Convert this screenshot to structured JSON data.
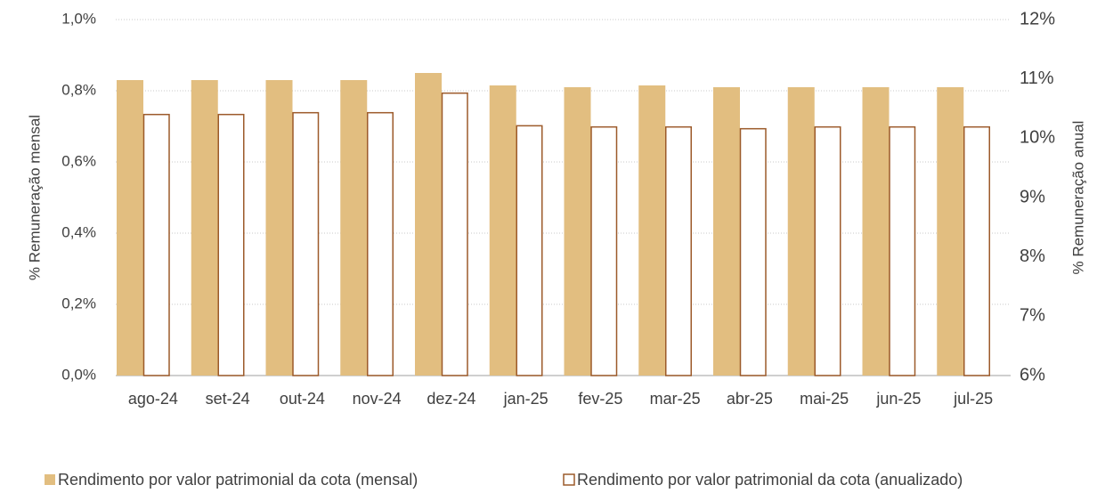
{
  "chart_data": {
    "type": "bar",
    "categories": [
      "ago-24",
      "set-24",
      "out-24",
      "nov-24",
      "dez-24",
      "jan-25",
      "fev-25",
      "mar-25",
      "abr-25",
      "mai-25",
      "jun-25",
      "jul-25"
    ],
    "series": [
      {
        "name": "Rendimento por valor patrimonial da cota (mensal)",
        "color": "#e2be80",
        "fill": "#e2be80",
        "values": [
          0.83,
          0.83,
          0.83,
          0.83,
          0.85,
          0.815,
          0.81,
          0.815,
          0.81,
          0.81,
          0.81,
          0.81
        ]
      },
      {
        "name": "Rendimento por valor patrimonial da cota (anualizado)",
        "color": "#9c5a2a",
        "fill": "#ffffff",
        "axis": "y2",
        "values": [
          10.4,
          10.4,
          10.43,
          10.43,
          10.76,
          10.21,
          10.19,
          10.19,
          10.16,
          10.19,
          10.19,
          10.19
        ]
      }
    ],
    "ylabel": "% Remuneração  mensal",
    "y2label": "% Remuneração  anual",
    "ylim": [
      0,
      1.0
    ],
    "yticks": [
      {
        "value": 0,
        "label": "0,0%"
      },
      {
        "value": 0.2,
        "label": "0,2%"
      },
      {
        "value": 0.4,
        "label": "0,4%"
      },
      {
        "value": 0.6,
        "label": "0,6%"
      },
      {
        "value": 0.8,
        "label": "0,8%"
      },
      {
        "value": 1.0,
        "label": "1,0%"
      }
    ],
    "y2lim": [
      6,
      12
    ],
    "y2ticks": [
      {
        "value": 6,
        "label": "6%"
      },
      {
        "value": 7,
        "label": "7%"
      },
      {
        "value": 8,
        "label": "8%"
      },
      {
        "value": 9,
        "label": "9%"
      },
      {
        "value": 10,
        "label": "10%"
      },
      {
        "value": 11,
        "label": "11%"
      },
      {
        "value": 12,
        "label": "12%"
      }
    ],
    "grid": true,
    "legend": "bottom"
  }
}
